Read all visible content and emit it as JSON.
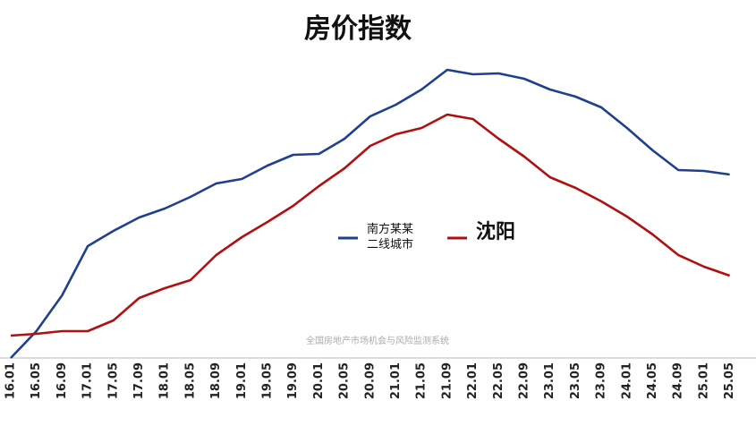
{
  "chart_data": {
    "type": "line",
    "title": "房价指数",
    "annotation": "全国房地产市场机会与风险监测系统",
    "categories": [
      "16.01",
      "16.05",
      "16.09",
      "17.01",
      "17.05",
      "17.09",
      "18.01",
      "18.05",
      "18.09",
      "19.01",
      "19.05",
      "19.09",
      "20.01",
      "20.05",
      "20.09",
      "21.01",
      "21.05",
      "21.09",
      "22.01",
      "22.05",
      "22.09",
      "23.01",
      "23.05",
      "23.09",
      "24.01",
      "24.05",
      "24.09",
      "25.01",
      "25.05"
    ],
    "series": [
      {
        "name": "南方某某二线城市",
        "color": "#1f3f8f",
        "values": [
          0,
          30,
          70,
          125,
          142,
          157,
          167,
          180,
          195,
          200,
          215,
          227,
          228,
          245,
          270,
          283,
          300,
          322,
          317,
          318,
          312,
          300,
          292,
          280,
          257,
          232,
          210,
          209,
          205
        ]
      },
      {
        "name": "沈阳",
        "color": "#b01010",
        "values": [
          25,
          27,
          30,
          30,
          42,
          67,
          78,
          87,
          115,
          135,
          152,
          170,
          192,
          212,
          237,
          250,
          257,
          272,
          267,
          245,
          225,
          202,
          190,
          175,
          158,
          138,
          115,
          102,
          92
        ]
      }
    ],
    "ylim": [
      0,
      340
    ]
  }
}
